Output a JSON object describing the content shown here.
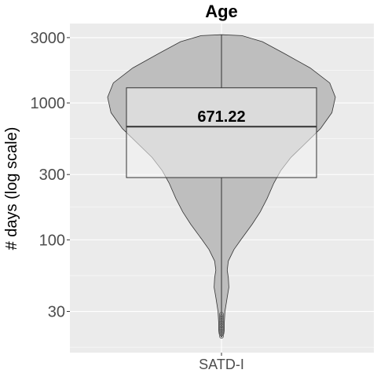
{
  "chart_data": {
    "type": "violin",
    "title": "Age",
    "ylabel": "# days (log scale)",
    "xlabel": "",
    "y_scale": "log",
    "ylim": [
      15,
      3800
    ],
    "y_ticks": [
      30,
      100,
      300,
      1000,
      3000
    ],
    "y_tick_labels": [
      "30",
      "100",
      "300",
      "1000",
      "3000"
    ],
    "grid": true,
    "categories": [
      "SATD-I"
    ],
    "median_label": "671.22",
    "box": {
      "q1": 285,
      "median": 671.22,
      "q3": 1290,
      "whisker_low": 19.5,
      "whisker_high": 3150
    },
    "outliers": [
      19.8,
      20.5,
      21.2,
      22.0,
      22.8,
      23.7,
      24.6,
      25.5,
      26.5,
      27.5,
      28.5
    ],
    "density": [
      {
        "y": 19.5,
        "w": 0.0
      },
      {
        "y": 20.5,
        "w": 0.02
      },
      {
        "y": 22,
        "w": 0.025
      },
      {
        "y": 25,
        "w": 0.025
      },
      {
        "y": 30,
        "w": 0.03
      },
      {
        "y": 38,
        "w": 0.05
      },
      {
        "y": 45,
        "w": 0.065
      },
      {
        "y": 53,
        "w": 0.06
      },
      {
        "y": 60,
        "w": 0.05
      },
      {
        "y": 70,
        "w": 0.06
      },
      {
        "y": 85,
        "w": 0.11
      },
      {
        "y": 100,
        "w": 0.17
      },
      {
        "y": 130,
        "w": 0.27
      },
      {
        "y": 160,
        "w": 0.34
      },
      {
        "y": 200,
        "w": 0.4
      },
      {
        "y": 260,
        "w": 0.46
      },
      {
        "y": 320,
        "w": 0.52
      },
      {
        "y": 400,
        "w": 0.61
      },
      {
        "y": 500,
        "w": 0.73
      },
      {
        "y": 650,
        "w": 0.87
      },
      {
        "y": 850,
        "w": 0.97
      },
      {
        "y": 1100,
        "w": 1.0
      },
      {
        "y": 1400,
        "w": 0.95
      },
      {
        "y": 1800,
        "w": 0.78
      },
      {
        "y": 2300,
        "w": 0.55
      },
      {
        "y": 2800,
        "w": 0.36
      },
      {
        "y": 3100,
        "w": 0.18
      },
      {
        "y": 3150,
        "w": 0.0
      }
    ],
    "colors": {
      "panel": "#ebebeb",
      "grid": "#ffffff",
      "violin_fill": "#bebebe",
      "violin_stroke": "#333333",
      "box_fill": "#f2f2f2",
      "box_stroke": "#333333",
      "tick_text": "#4d4d4d"
    }
  }
}
